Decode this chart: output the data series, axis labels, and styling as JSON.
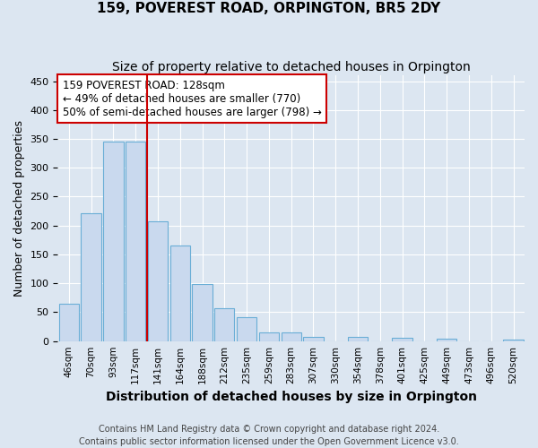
{
  "title": "159, POVEREST ROAD, ORPINGTON, BR5 2DY",
  "subtitle": "Size of property relative to detached houses in Orpington",
  "xlabel": "Distribution of detached houses by size in Orpington",
  "ylabel": "Number of detached properties",
  "bar_labels": [
    "46sqm",
    "70sqm",
    "93sqm",
    "117sqm",
    "141sqm",
    "164sqm",
    "188sqm",
    "212sqm",
    "235sqm",
    "259sqm",
    "283sqm",
    "307sqm",
    "330sqm",
    "354sqm",
    "378sqm",
    "401sqm",
    "425sqm",
    "449sqm",
    "473sqm",
    "496sqm",
    "520sqm"
  ],
  "bar_values": [
    65,
    222,
    346,
    345,
    208,
    165,
    98,
    57,
    42,
    15,
    15,
    7,
    0,
    7,
    0,
    5,
    0,
    4,
    0,
    0,
    2
  ],
  "bar_color": "#c9d9ee",
  "bar_edge_color": "#6aaed6",
  "vline_x": 3.5,
  "vline_color": "#cc0000",
  "annotation_line1": "159 POVEREST ROAD: 128sqm",
  "annotation_line2": "← 49% of detached houses are smaller (770)",
  "annotation_line3": "50% of semi-detached houses are larger (798) →",
  "annotation_box_color": "#ffffff",
  "annotation_box_edge": "#cc0000",
  "ylim": [
    0,
    460
  ],
  "yticks": [
    0,
    50,
    100,
    150,
    200,
    250,
    300,
    350,
    400,
    450
  ],
  "footer": "Contains HM Land Registry data © Crown copyright and database right 2024.\nContains public sector information licensed under the Open Government Licence v3.0.",
  "bg_color": "#dce6f1",
  "plot_bg_color": "#dce6f1",
  "grid_color": "#ffffff",
  "title_fontsize": 11,
  "subtitle_fontsize": 10,
  "xlabel_fontsize": 10,
  "ylabel_fontsize": 9,
  "annotation_fontsize": 8.5,
  "footer_fontsize": 7
}
